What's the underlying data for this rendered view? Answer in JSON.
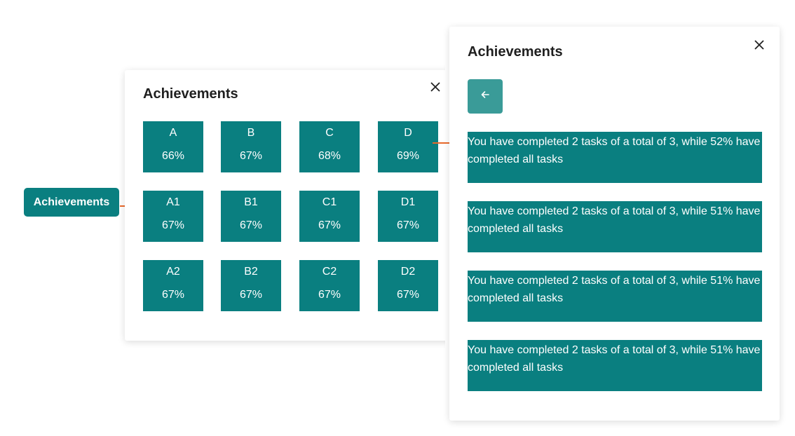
{
  "launcher": {
    "label": "Achievements"
  },
  "grid_panel": {
    "title": "Achievements",
    "tiles": [
      {
        "name": "A",
        "percent": "66%"
      },
      {
        "name": "B",
        "percent": "67%"
      },
      {
        "name": "C",
        "percent": "68%"
      },
      {
        "name": "D",
        "percent": "69%"
      },
      {
        "name": "A1",
        "percent": "67%"
      },
      {
        "name": "B1",
        "percent": "67%"
      },
      {
        "name": "C1",
        "percent": "67%"
      },
      {
        "name": "D1",
        "percent": "67%"
      },
      {
        "name": "A2",
        "percent": "67%"
      },
      {
        "name": "B2",
        "percent": "67%"
      },
      {
        "name": "C2",
        "percent": "67%"
      },
      {
        "name": "D2",
        "percent": "67%"
      }
    ]
  },
  "detail_panel": {
    "title": "Achievements",
    "back_icon": "arrow-left-icon",
    "messages": [
      "You have completed 2 tasks of a total of 3, while 52% have completed all tasks",
      "You have completed 2 tasks of a total of 3, while 51% have completed all tasks",
      "You have completed 2 tasks of a total of 3, while 51% have completed all tasks",
      "You have completed 2 tasks of a total of 3, while 51% have completed all tasks"
    ]
  },
  "colors": {
    "teal": "#0a7f80",
    "back_button": "#3a9b98",
    "arrow": "#e8692b"
  }
}
